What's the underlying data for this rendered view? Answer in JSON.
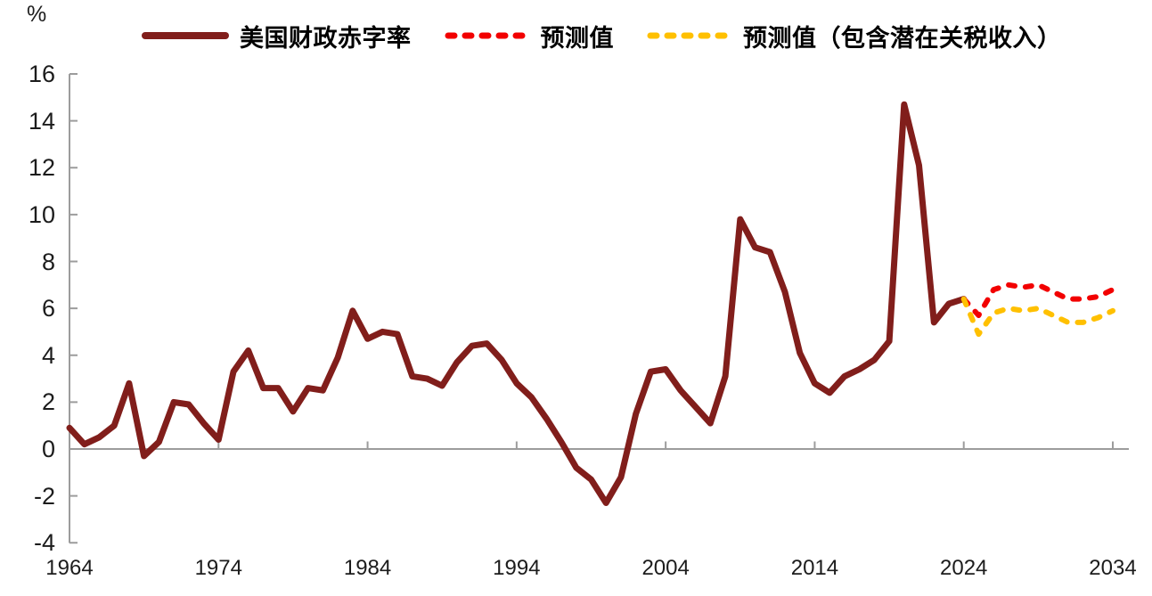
{
  "unit_label": "%",
  "colors": {
    "actual": "#811E1B",
    "forecast": "#F20000",
    "forecast_tariff": "#FFC000",
    "axis": "#9C9C9C",
    "text": "#1C1C1C"
  },
  "legend": [
    {
      "label": "美国财政赤字率",
      "style": "solid",
      "color": "#811E1B"
    },
    {
      "label": "预测值",
      "style": "dashed",
      "color": "#F20000"
    },
    {
      "label": "预测值（包含潜在关税收入）",
      "style": "dashed",
      "color": "#FFC000"
    }
  ],
  "chart_data": {
    "type": "line",
    "title": "",
    "xlabel": "",
    "ylabel": "%",
    "ylim": [
      -4,
      16
    ],
    "yticks": [
      16,
      14,
      12,
      10,
      8,
      6,
      4,
      2,
      0,
      -2,
      -4
    ],
    "xlim": [
      1964,
      2034
    ],
    "xticks": [
      1964,
      1974,
      1984,
      1994,
      2004,
      2014,
      2024,
      2034
    ],
    "grid": false,
    "legend_position": "top",
    "series": [
      {
        "name": "美国财政赤字率",
        "color": "#811E1B",
        "dashed": false,
        "start_year": 1964,
        "values": [
          0.9,
          0.2,
          0.5,
          1.0,
          2.8,
          -0.3,
          0.3,
          2.0,
          1.9,
          1.1,
          0.4,
          3.3,
          4.2,
          2.6,
          2.6,
          1.6,
          2.6,
          2.5,
          3.9,
          5.9,
          4.7,
          5.0,
          4.9,
          3.1,
          3.0,
          2.7,
          3.7,
          4.4,
          4.5,
          3.8,
          2.8,
          2.2,
          1.3,
          0.3,
          -0.8,
          -1.3,
          -2.3,
          -1.2,
          1.5,
          3.3,
          3.4,
          2.5,
          1.8,
          1.1,
          3.1,
          9.8,
          8.6,
          8.4,
          6.7,
          4.1,
          2.8,
          2.4,
          3.1,
          3.4,
          3.8,
          4.6,
          14.7,
          12.1,
          5.4,
          6.2,
          6.4
        ]
      },
      {
        "name": "预测值",
        "color": "#F20000",
        "dashed": true,
        "start_year": 2024,
        "values": [
          6.4,
          5.7,
          6.8,
          7.0,
          6.9,
          7.0,
          6.7,
          6.4,
          6.4,
          6.5,
          6.8
        ]
      },
      {
        "name": "预测值（包含潜在关税收入）",
        "color": "#FFC000",
        "dashed": true,
        "start_year": 2024,
        "values": [
          6.4,
          4.9,
          5.8,
          6.0,
          5.9,
          6.0,
          5.7,
          5.4,
          5.4,
          5.6,
          5.9
        ]
      }
    ]
  }
}
